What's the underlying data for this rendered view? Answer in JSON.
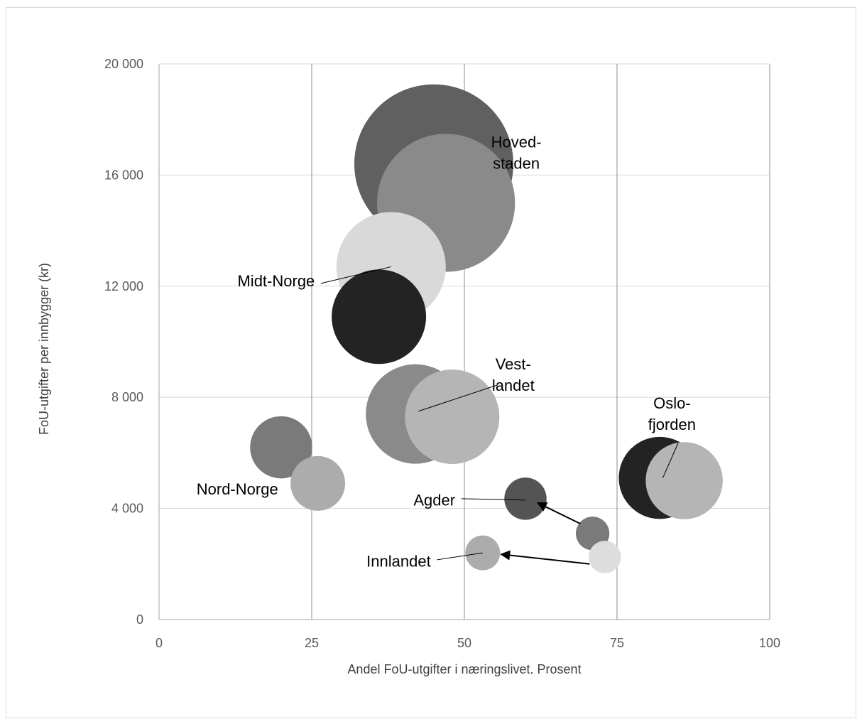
{
  "chart_data": {
    "type": "bubble",
    "title": "",
    "xlabel": "Andel FoU-utgifter i næringslivet. Prosent",
    "ylabel": "FoU-utgifter per innbygger (kr)",
    "xlim": [
      0,
      100
    ],
    "ylim": [
      0,
      20000
    ],
    "x_ticks": [
      0,
      25,
      50,
      75,
      100
    ],
    "x_tick_labels": [
      "0",
      "25",
      "50",
      "75",
      "100"
    ],
    "y_ticks": [
      0,
      4000,
      8000,
      12000,
      16000,
      20000
    ],
    "y_tick_labels": [
      "0",
      "4 000",
      "8 000",
      "12 000",
      "16 000",
      "20 000"
    ],
    "grid": "major",
    "legend": "none",
    "bubbles": [
      {
        "region": "Hovedstaden",
        "x": 45,
        "y": 16400,
        "size": 128,
        "color": "#606060"
      },
      {
        "region": "Hovedstaden",
        "x": 47,
        "y": 15000,
        "size": 111,
        "color": "#8a8a8a"
      },
      {
        "region": "Midt-Norge",
        "x": 38,
        "y": 12700,
        "size": 88,
        "color": "#d9d9d9"
      },
      {
        "region": "Midt-Norge",
        "x": 36,
        "y": 10900,
        "size": 76,
        "color": "#232323"
      },
      {
        "region": "Vestlandet",
        "x": 42,
        "y": 7400,
        "size": 80,
        "color": "#8a8a8a"
      },
      {
        "region": "Vestlandet",
        "x": 48,
        "y": 7300,
        "size": 76,
        "color": "#b5b5b5"
      },
      {
        "region": "Nord-Norge",
        "x": 20,
        "y": 6200,
        "size": 50,
        "color": "#7a7a7a"
      },
      {
        "region": "Nord-Norge",
        "x": 26,
        "y": 4900,
        "size": 44,
        "color": "#acacac"
      },
      {
        "region": "Oslofjorden",
        "x": 82,
        "y": 5100,
        "size": 66,
        "color": "#232323"
      },
      {
        "region": "Oslofjorden",
        "x": 86,
        "y": 5000,
        "size": 62,
        "color": "#b5b5b5"
      },
      {
        "region": "Agder",
        "x": 60,
        "y": 4350,
        "size": 34,
        "color": "#545454"
      },
      {
        "region": "Agder",
        "x": 71,
        "y": 3100,
        "size": 27,
        "color": "#7a7a7a"
      },
      {
        "region": "Innlandet",
        "x": 53,
        "y": 2400,
        "size": 28,
        "color": "#acacac"
      },
      {
        "region": "Innlandet",
        "x": 73,
        "y": 2250,
        "size": 26,
        "color": "#dddddd"
      }
    ],
    "arrows": [
      {
        "region": "Agder",
        "from": [
          69,
          3450
        ],
        "to": [
          62,
          4200
        ]
      },
      {
        "region": "Innlandet",
        "from": [
          70.5,
          2000
        ],
        "to": [
          56,
          2350
        ]
      }
    ],
    "annotations": [
      {
        "lines": [
          "Hoved-",
          "staden"
        ],
        "x": 58.5,
        "y": 17000,
        "anchor": "middle"
      },
      {
        "lines": [
          "Midt-Norge"
        ],
        "x": 25.5,
        "y": 12000,
        "anchor": "end",
        "leader_from": [
          26.5,
          12100
        ],
        "leader_to": [
          38,
          12700
        ]
      },
      {
        "lines": [
          "Vest-",
          "landet"
        ],
        "x": 58,
        "y": 9000,
        "anchor": "middle",
        "leader_from": [
          55.5,
          8450
        ],
        "leader_to": [
          42.5,
          7500
        ]
      },
      {
        "lines": [
          "Nord-Norge"
        ],
        "x": 19.5,
        "y": 4500,
        "anchor": "end"
      },
      {
        "lines": [
          "Oslo-",
          "fjorden"
        ],
        "x": 84,
        "y": 7600,
        "anchor": "middle",
        "leader_from": [
          85,
          6350
        ],
        "leader_to": [
          82.5,
          5100
        ]
      },
      {
        "lines": [
          "Agder"
        ],
        "x": 48.5,
        "y": 4100,
        "anchor": "end",
        "leader_from": [
          49.5,
          4350
        ],
        "leader_to": [
          60,
          4300
        ]
      },
      {
        "lines": [
          "Innlandet"
        ],
        "x": 44.5,
        "y": 1900,
        "anchor": "end",
        "leader_from": [
          45.5,
          2150
        ],
        "leader_to": [
          53,
          2400
        ]
      }
    ]
  }
}
